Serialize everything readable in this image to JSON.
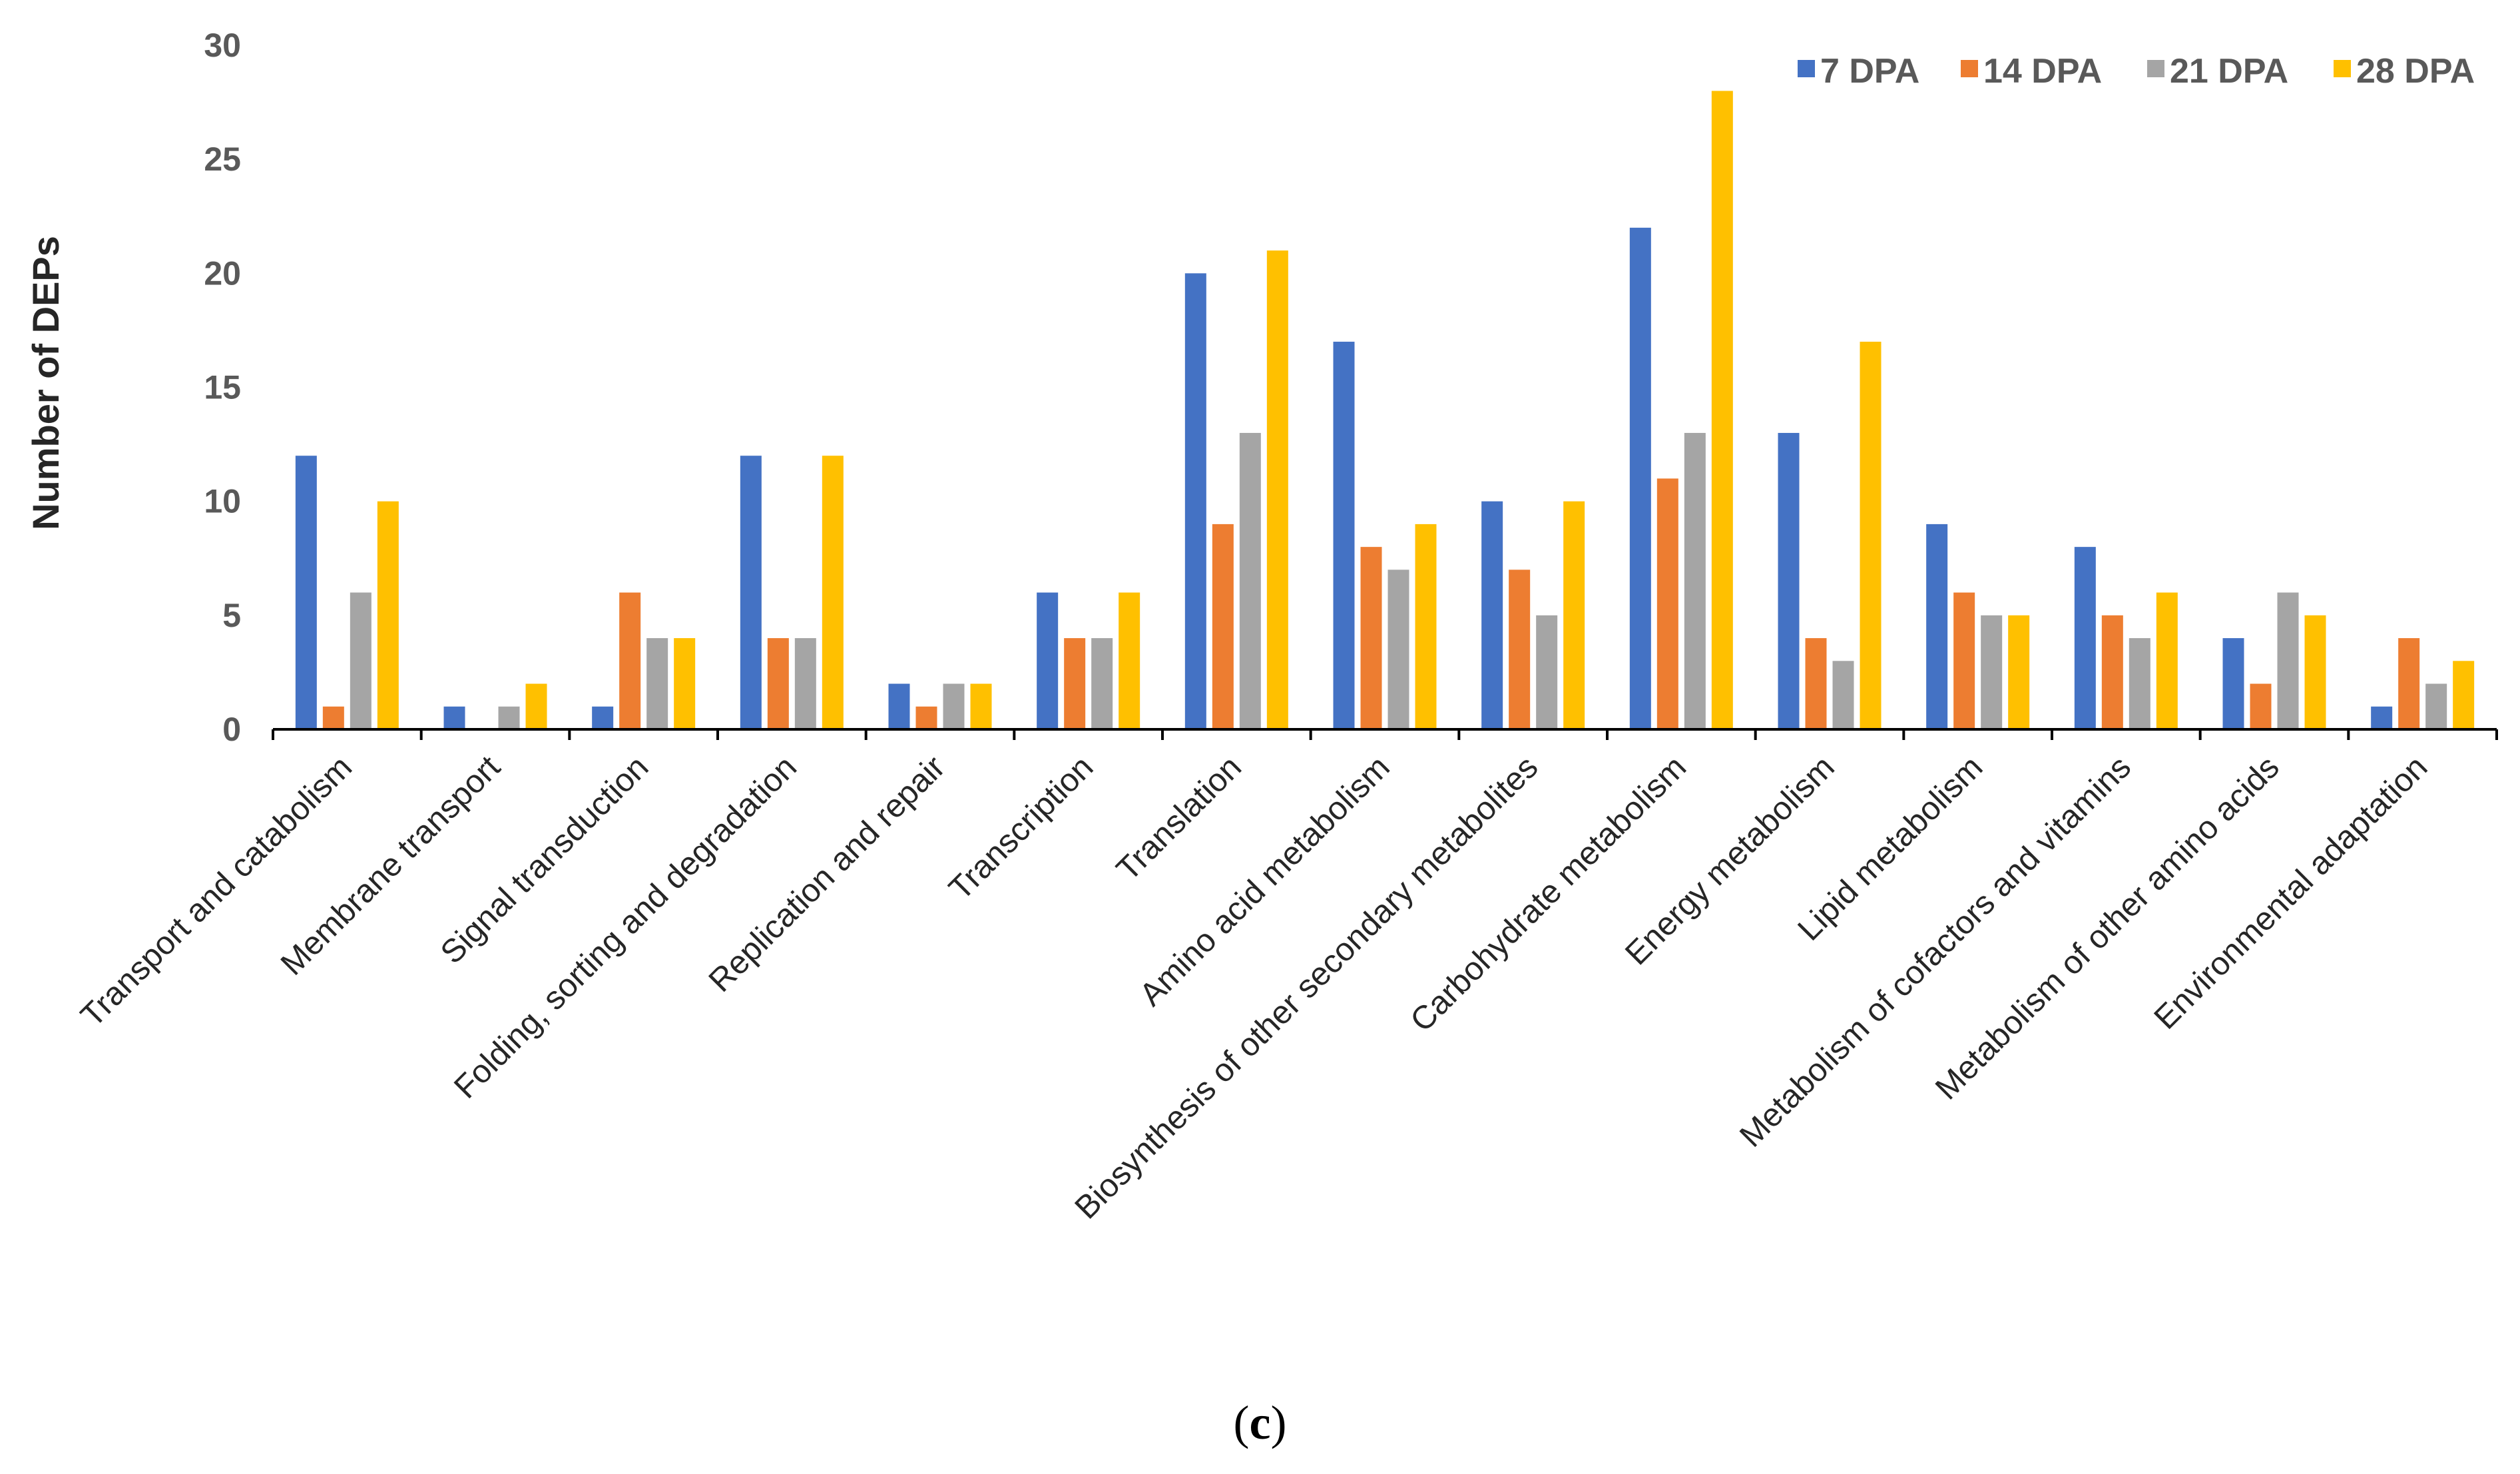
{
  "chart_data": {
    "type": "bar",
    "title": "",
    "xlabel": "",
    "ylabel": "Number of DEPs",
    "ylim": [
      0,
      30
    ],
    "yticks": [
      0,
      5,
      10,
      15,
      20,
      25,
      30
    ],
    "grid": false,
    "legend_position": "top-right",
    "categories": [
      "Transport and catabolism",
      "Membrane transport",
      "Signal transduction",
      "Folding, sorting and degradation",
      "Replication and repair",
      "Transcription",
      "Translation",
      "Amino acid metabolism",
      "Biosynthesis of other secondary metabolites",
      "Carbohydrate metabolism",
      "Energy metabolism",
      "Lipid metabolism",
      "Metabolism of cofactors and vitamins",
      "Metabolism of other amino acids",
      "Environmental adaptation"
    ],
    "series": [
      {
        "name": "7 DPA",
        "color": "#4472C4",
        "values": [
          12,
          1,
          1,
          12,
          2,
          6,
          20,
          17,
          10,
          22,
          13,
          9,
          8,
          4,
          1
        ]
      },
      {
        "name": "14 DPA",
        "color": "#ED7D31",
        "values": [
          1,
          0,
          6,
          4,
          1,
          4,
          9,
          8,
          7,
          11,
          4,
          6,
          5,
          2,
          4
        ]
      },
      {
        "name": "21 DPA",
        "color": "#A5A5A5",
        "values": [
          6,
          1,
          4,
          4,
          2,
          4,
          13,
          7,
          5,
          13,
          3,
          5,
          4,
          6,
          2
        ]
      },
      {
        "name": "28 DPA",
        "color": "#FFC000",
        "values": [
          10,
          2,
          4,
          12,
          2,
          6,
          21,
          9,
          10,
          28,
          17,
          5,
          6,
          5,
          3
        ]
      }
    ]
  },
  "caption": {
    "open": "(",
    "letter": "c",
    "close": ")"
  }
}
